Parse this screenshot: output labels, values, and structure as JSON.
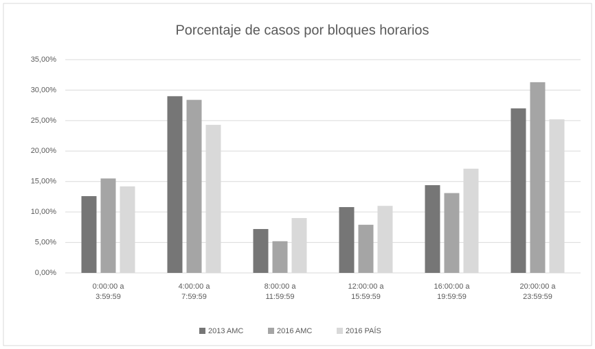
{
  "chart_data": {
    "type": "bar",
    "title": "Porcentaje de casos por bloques horarios",
    "categories": [
      "0:00:00 a 3:59:59",
      "4:00:00 a 7:59:59",
      "8:00:00 a 11:59:59",
      "12:00:00 a 15:59:59",
      "16:00:00 a 19:59:59",
      "20:00:00 a 23:59:59"
    ],
    "series": [
      {
        "name": "2013 AMC",
        "color": "#767676",
        "values": [
          12.6,
          29.0,
          7.2,
          10.8,
          14.4,
          27.0
        ]
      },
      {
        "name": "2016 AMC",
        "color": "#a5a5a5",
        "values": [
          15.5,
          28.4,
          5.2,
          7.9,
          13.1,
          31.3
        ]
      },
      {
        "name": "2016 PAÍS",
        "color": "#d9d9d9",
        "values": [
          14.2,
          24.3,
          9.0,
          11.0,
          17.1,
          25.2
        ]
      }
    ],
    "ylim": [
      0,
      35
    ],
    "yticks": [
      {
        "value": 0,
        "label": "0,00%"
      },
      {
        "value": 5,
        "label": "5,00%"
      },
      {
        "value": 10,
        "label": "10,00%"
      },
      {
        "value": 15,
        "label": "15,00%"
      },
      {
        "value": 20,
        "label": "20,00%"
      },
      {
        "value": 25,
        "label": "25,00%"
      },
      {
        "value": 30,
        "label": "30,00%"
      },
      {
        "value": 35,
        "label": "35,00%"
      }
    ],
    "grid": true,
    "legend": "bottom"
  }
}
